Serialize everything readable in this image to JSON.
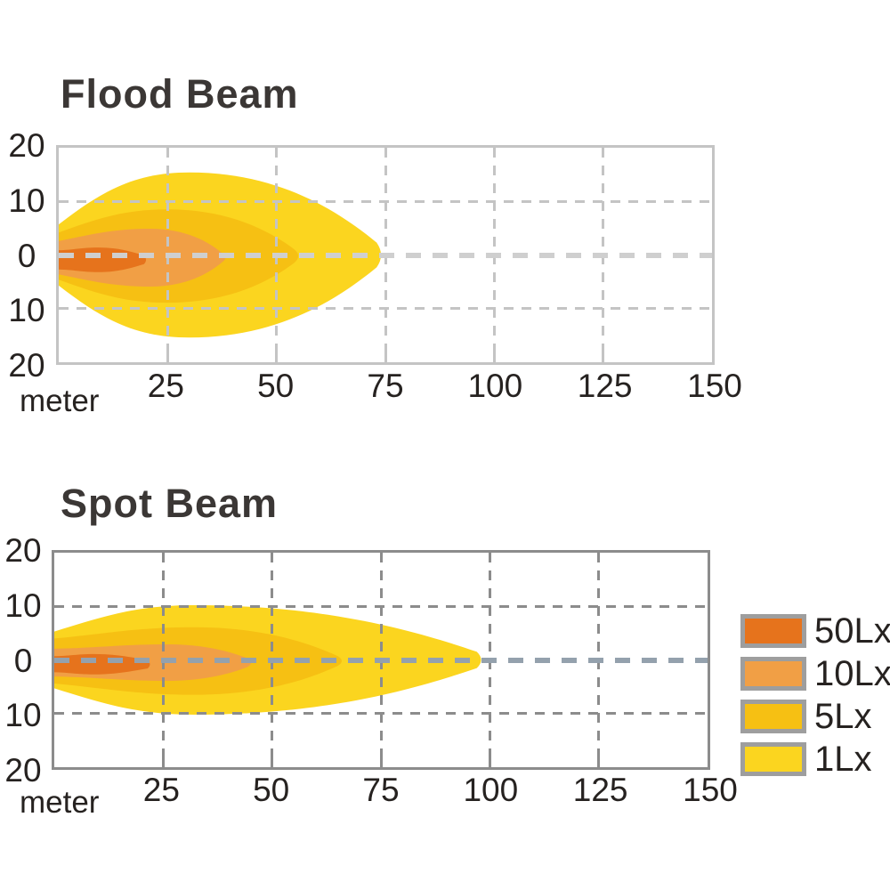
{
  "page": {
    "background": "#ffffff"
  },
  "colors": {
    "lx50": "#E6731C",
    "lx10": "#F19F45",
    "lx5": "#F6C013",
    "lx1": "#FBD51F",
    "flood_grid": "#C4C4C4",
    "flood_centerline": "#CFCFCF",
    "flood_border": "#C4C4C4",
    "spot_grid": "#8C8C8C",
    "spot_centerline": "#94A1AD",
    "spot_border": "#8C8C8C",
    "tick_text": "#262220",
    "title_text": "#3B3735",
    "legend_swatch_border": "#9E9E9E"
  },
  "legend": {
    "items": [
      {
        "label": "50Lx",
        "color_key": "lx50"
      },
      {
        "label": "10Lx",
        "color_key": "lx10"
      },
      {
        "label": "5Lx",
        "color_key": "lx5"
      },
      {
        "label": "1Lx",
        "color_key": "lx1"
      }
    ]
  },
  "chart_data": [
    {
      "type": "area",
      "id": "flood",
      "title": "Flood Beam",
      "x_axis_unit": "meter",
      "x_range_m": [
        0,
        150
      ],
      "y_range_m": [
        -20,
        20
      ],
      "x_tick_labels": [
        "25",
        "50",
        "75",
        "100",
        "125",
        "150"
      ],
      "y_tick_labels": [
        "20",
        "10",
        "0",
        "10",
        "20"
      ],
      "grid": true,
      "grid_interval_x_m": 25,
      "grid_interval_y_m": 10,
      "series": [
        {
          "name": "50Lx",
          "color": "#E6731C",
          "reach_m": 20.5,
          "max_half_width_m": 2.3,
          "x_at_max_m": 9,
          "half_width_at_0m": 1.8,
          "center_offset_m": 0.9
        },
        {
          "name": "10Lx",
          "color": "#F19F45",
          "reach_m": 39,
          "max_half_width_m": 5.4,
          "x_at_max_m": 21,
          "half_width_at_0m": 3.1,
          "center_offset_m": 0.5
        },
        {
          "name": "5Lx",
          "color": "#F6C013",
          "reach_m": 56,
          "max_half_width_m": 8.7,
          "x_at_max_m": 25,
          "half_width_at_0m": 4.4,
          "center_offset_m": 0.2
        },
        {
          "name": "1Lx",
          "color": "#FBD51F",
          "reach_m": 75,
          "max_half_width_m": 15.4,
          "x_at_max_m": 30,
          "half_width_at_0m": 5.7,
          "center_offset_m": 0
        }
      ]
    },
    {
      "type": "area",
      "id": "spot",
      "title": "Spot Beam",
      "x_axis_unit": "meter",
      "x_range_m": [
        0,
        150
      ],
      "y_range_m": [
        -20,
        20
      ],
      "x_tick_labels": [
        "25",
        "50",
        "75",
        "100",
        "125",
        "150"
      ],
      "y_tick_labels": [
        "20",
        "10",
        "0",
        "10",
        "20"
      ],
      "grid": true,
      "grid_interval_x_m": 25,
      "grid_interval_y_m": 10,
      "series": [
        {
          "name": "50Lx",
          "color": "#E6731C",
          "reach_m": 22.5,
          "max_half_width_m": 1.9,
          "x_at_max_m": 9,
          "half_width_at_0m": 1.5,
          "center_offset_m": 0.8
        },
        {
          "name": "10Lx",
          "color": "#F19F45",
          "reach_m": 46,
          "max_half_width_m": 3.4,
          "x_at_max_m": 26,
          "half_width_at_0m": 2.6,
          "center_offset_m": 0.5
        },
        {
          "name": "5Lx",
          "color": "#F6C013",
          "reach_m": 67,
          "max_half_width_m": 6.3,
          "x_at_max_m": 32,
          "half_width_at_0m": 4.2,
          "center_offset_m": 0.2
        },
        {
          "name": "1Lx",
          "color": "#FBD51F",
          "reach_m": 99,
          "max_half_width_m": 10.2,
          "x_at_max_m": 32,
          "half_width_at_0m": 5.3,
          "center_offset_m": 0
        }
      ]
    }
  ]
}
